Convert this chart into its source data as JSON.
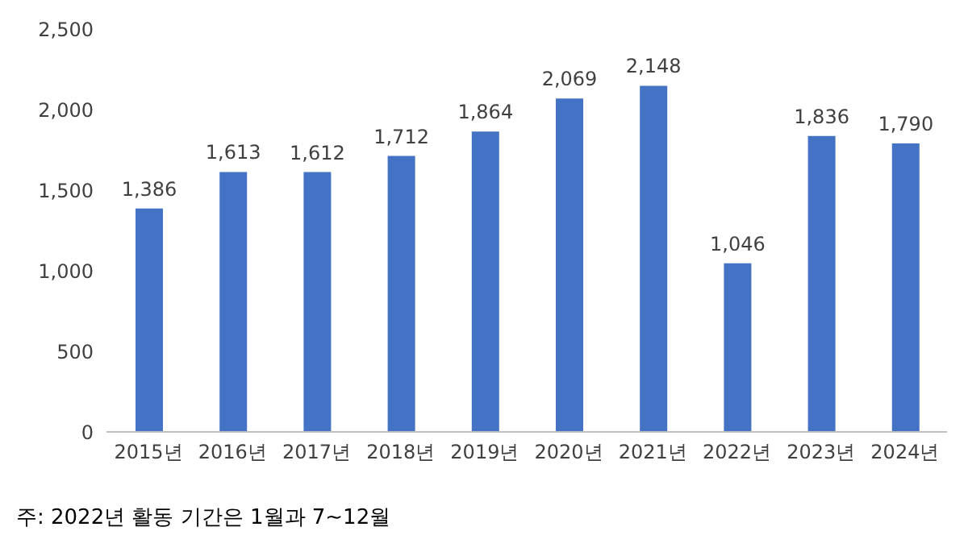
{
  "chart_data": {
    "type": "bar",
    "categories": [
      "2015년",
      "2016년",
      "2017년",
      "2018년",
      "2019년",
      "2020년",
      "2021년",
      "2022년",
      "2023년",
      "2024년"
    ],
    "values": [
      1386,
      1613,
      1612,
      1712,
      1864,
      2069,
      2148,
      1046,
      1836,
      1790
    ],
    "value_labels": [
      "1,386",
      "1,613",
      "1,612",
      "1,712",
      "1,864",
      "2,069",
      "2,148",
      "1,046",
      "1,836",
      "1,790"
    ],
    "color": "#4472c4",
    "ylim": [
      0,
      2500
    ],
    "yticks": [
      {
        "value": 0,
        "label": "0"
      },
      {
        "value": 500,
        "label": "500"
      },
      {
        "value": 1000,
        "label": "1,000"
      },
      {
        "value": 1500,
        "label": "1,500"
      },
      {
        "value": 2000,
        "label": "2,000"
      },
      {
        "value": 2500,
        "label": "2,500"
      }
    ],
    "grid": false,
    "annotations": [
      "주: 2022년 활동 기간은 1월과 7~12월"
    ]
  }
}
